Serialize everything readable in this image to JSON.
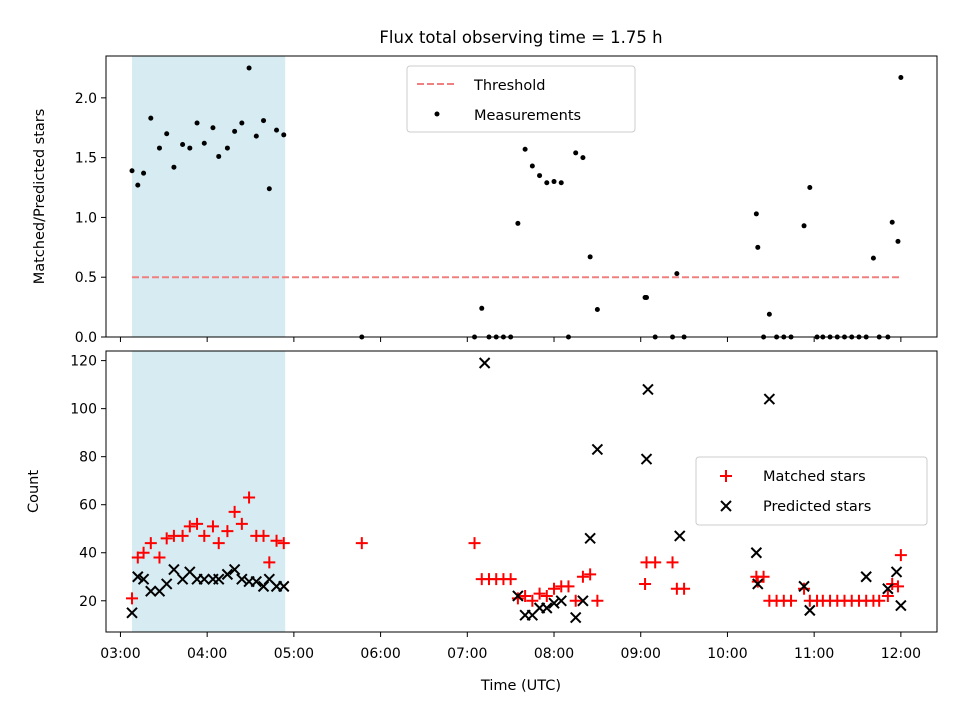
{
  "chart_data": {
    "title": "Flux total observing time = 1.75 h",
    "xlabel": "Time (UTC)",
    "x_ticks": [
      "03:00",
      "04:00",
      "05:00",
      "06:00",
      "07:00",
      "08:00",
      "09:00",
      "10:00",
      "11:00",
      "12:00"
    ],
    "x_range": [
      "02:50",
      "12:25"
    ],
    "highlight_span": {
      "start": "03:08",
      "end": "04:54",
      "color": "#add8e6"
    },
    "panels": [
      {
        "type": "scatter",
        "ylabel": "Matched/Predicted stars",
        "ylim": [
          0,
          2.35
        ],
        "y_ticks": [
          "0.0",
          "0.5",
          "1.0",
          "1.5",
          "2.0"
        ],
        "legend_position": "top-center",
        "threshold": {
          "name": "Threshold",
          "value": 0.5,
          "x_start": "03:08",
          "x_end": "11:59",
          "color": "#f08080"
        },
        "series": [
          {
            "name": "Measurements",
            "color": "#000000",
            "points": [
              [
                "03:08",
                1.39
              ],
              [
                "03:12",
                1.27
              ],
              [
                "03:16",
                1.37
              ],
              [
                "03:21",
                1.83
              ],
              [
                "03:27",
                1.58
              ],
              [
                "03:32",
                1.7
              ],
              [
                "03:37",
                1.42
              ],
              [
                "03:43",
                1.61
              ],
              [
                "03:48",
                1.58
              ],
              [
                "03:53",
                1.79
              ],
              [
                "03:58",
                1.62
              ],
              [
                "04:04",
                1.75
              ],
              [
                "04:08",
                1.51
              ],
              [
                "04:14",
                1.58
              ],
              [
                "04:19",
                1.72
              ],
              [
                "04:24",
                1.79
              ],
              [
                "04:29",
                2.25
              ],
              [
                "04:34",
                1.68
              ],
              [
                "04:39",
                1.81
              ],
              [
                "04:43",
                1.24
              ],
              [
                "04:48",
                1.73
              ],
              [
                "04:53",
                1.69
              ],
              [
                "05:47",
                0.0
              ],
              [
                "07:05",
                0.0
              ],
              [
                "07:10",
                0.24
              ],
              [
                "07:15",
                0.0
              ],
              [
                "07:20",
                0.0
              ],
              [
                "07:25",
                0.0
              ],
              [
                "07:30",
                0.0
              ],
              [
                "07:35",
                0.95
              ],
              [
                "07:40",
                1.57
              ],
              [
                "07:45",
                1.43
              ],
              [
                "07:50",
                1.35
              ],
              [
                "07:55",
                1.29
              ],
              [
                "08:00",
                1.3
              ],
              [
                "08:05",
                1.29
              ],
              [
                "08:10",
                0.0
              ],
              [
                "08:15",
                1.54
              ],
              [
                "08:20",
                1.5
              ],
              [
                "08:25",
                0.67
              ],
              [
                "08:30",
                0.23
              ],
              [
                "09:03",
                0.33
              ],
              [
                "09:04",
                0.33
              ],
              [
                "09:10",
                0.0
              ],
              [
                "09:22",
                0.0
              ],
              [
                "09:25",
                0.53
              ],
              [
                "09:30",
                0.0
              ],
              [
                "10:20",
                1.03
              ],
              [
                "10:21",
                0.75
              ],
              [
                "10:25",
                0.0
              ],
              [
                "10:29",
                0.19
              ],
              [
                "10:34",
                0.0
              ],
              [
                "10:39",
                0.0
              ],
              [
                "10:44",
                0.0
              ],
              [
                "10:53",
                0.93
              ],
              [
                "10:57",
                1.25
              ],
              [
                "11:02",
                0.0
              ],
              [
                "11:06",
                0.0
              ],
              [
                "11:11",
                0.0
              ],
              [
                "11:16",
                0.0
              ],
              [
                "11:21",
                0.0
              ],
              [
                "11:26",
                0.0
              ],
              [
                "11:31",
                0.0
              ],
              [
                "11:36",
                0.0
              ],
              [
                "11:41",
                0.66
              ],
              [
                "11:45",
                0.0
              ],
              [
                "11:51",
                0.0
              ],
              [
                "11:54",
                0.96
              ],
              [
                "11:58",
                0.8
              ],
              [
                "12:00",
                2.17
              ]
            ]
          }
        ]
      },
      {
        "type": "scatter",
        "ylabel": "Count",
        "ylim": [
          7,
          124
        ],
        "y_ticks": [
          "20",
          "40",
          "60",
          "80",
          "100",
          "120"
        ],
        "legend_position": "center-right",
        "series": [
          {
            "name": "Matched stars",
            "marker": "plus",
            "color": "#ff0000",
            "points": [
              [
                "03:08",
                21
              ],
              [
                "03:12",
                38
              ],
              [
                "03:16",
                40
              ],
              [
                "03:21",
                44
              ],
              [
                "03:27",
                38
              ],
              [
                "03:32",
                46
              ],
              [
                "03:37",
                47
              ],
              [
                "03:43",
                47
              ],
              [
                "03:48",
                51
              ],
              [
                "03:53",
                52
              ],
              [
                "03:58",
                47
              ],
              [
                "04:04",
                51
              ],
              [
                "04:08",
                44
              ],
              [
                "04:14",
                49
              ],
              [
                "04:19",
                57
              ],
              [
                "04:24",
                52
              ],
              [
                "04:29",
                63
              ],
              [
                "04:34",
                47
              ],
              [
                "04:39",
                47
              ],
              [
                "04:43",
                36
              ],
              [
                "04:48",
                45
              ],
              [
                "04:53",
                44
              ],
              [
                "05:47",
                44
              ],
              [
                "07:05",
                44
              ],
              [
                "07:10",
                29
              ],
              [
                "07:15",
                29
              ],
              [
                "07:20",
                29
              ],
              [
                "07:25",
                29
              ],
              [
                "07:30",
                29
              ],
              [
                "07:35",
                21
              ],
              [
                "07:40",
                22
              ],
              [
                "07:45",
                20
              ],
              [
                "07:50",
                23
              ],
              [
                "07:55",
                22
              ],
              [
                "08:00",
                25
              ],
              [
                "08:05",
                26
              ],
              [
                "08:10",
                26
              ],
              [
                "08:15",
                20
              ],
              [
                "08:20",
                30
              ],
              [
                "08:25",
                31
              ],
              [
                "08:30",
                20
              ],
              [
                "09:03",
                27
              ],
              [
                "09:04",
                36
              ],
              [
                "09:10",
                36
              ],
              [
                "09:22",
                36
              ],
              [
                "09:25",
                25
              ],
              [
                "09:30",
                25
              ],
              [
                "10:20",
                30
              ],
              [
                "10:21",
                28
              ],
              [
                "10:25",
                30
              ],
              [
                "10:29",
                20
              ],
              [
                "10:34",
                20
              ],
              [
                "10:39",
                20
              ],
              [
                "10:44",
                20
              ],
              [
                "10:53",
                25
              ],
              [
                "10:57",
                20
              ],
              [
                "11:02",
                20
              ],
              [
                "11:06",
                20
              ],
              [
                "11:11",
                20
              ],
              [
                "11:16",
                20
              ],
              [
                "11:21",
                20
              ],
              [
                "11:26",
                20
              ],
              [
                "11:31",
                20
              ],
              [
                "11:36",
                20
              ],
              [
                "11:41",
                20
              ],
              [
                "11:45",
                20
              ],
              [
                "11:51",
                22
              ],
              [
                "11:54",
                27
              ],
              [
                "11:58",
                26
              ],
              [
                "12:00",
                39
              ]
            ]
          },
          {
            "name": "Predicted stars",
            "marker": "x",
            "color": "#000000",
            "points": [
              [
                "03:08",
                15
              ],
              [
                "03:12",
                30
              ],
              [
                "03:16",
                29
              ],
              [
                "03:21",
                24
              ],
              [
                "03:27",
                24
              ],
              [
                "03:32",
                27
              ],
              [
                "03:37",
                33
              ],
              [
                "03:43",
                29
              ],
              [
                "03:48",
                32
              ],
              [
                "03:53",
                29
              ],
              [
                "03:58",
                29
              ],
              [
                "04:04",
                29
              ],
              [
                "04:08",
                29
              ],
              [
                "04:14",
                31
              ],
              [
                "04:19",
                33
              ],
              [
                "04:24",
                29
              ],
              [
                "04:29",
                28
              ],
              [
                "04:34",
                28
              ],
              [
                "04:39",
                26
              ],
              [
                "04:43",
                29
              ],
              [
                "04:48",
                26
              ],
              [
                "04:53",
                26
              ],
              [
                "07:12",
                119
              ],
              [
                "07:35",
                22
              ],
              [
                "07:40",
                14
              ],
              [
                "07:45",
                14
              ],
              [
                "07:50",
                17
              ],
              [
                "07:55",
                17
              ],
              [
                "08:00",
                19
              ],
              [
                "08:05",
                20
              ],
              [
                "08:15",
                13
              ],
              [
                "08:20",
                20
              ],
              [
                "08:25",
                46
              ],
              [
                "08:30",
                83
              ],
              [
                "09:04",
                79
              ],
              [
                "09:05",
                108
              ],
              [
                "09:27",
                47
              ],
              [
                "10:20",
                40
              ],
              [
                "10:21",
                27
              ],
              [
                "10:29",
                104
              ],
              [
                "10:53",
                26
              ],
              [
                "10:57",
                16
              ],
              [
                "11:36",
                30
              ],
              [
                "11:51",
                25
              ],
              [
                "11:57",
                32
              ],
              [
                "12:00",
                18
              ]
            ]
          }
        ]
      }
    ]
  }
}
